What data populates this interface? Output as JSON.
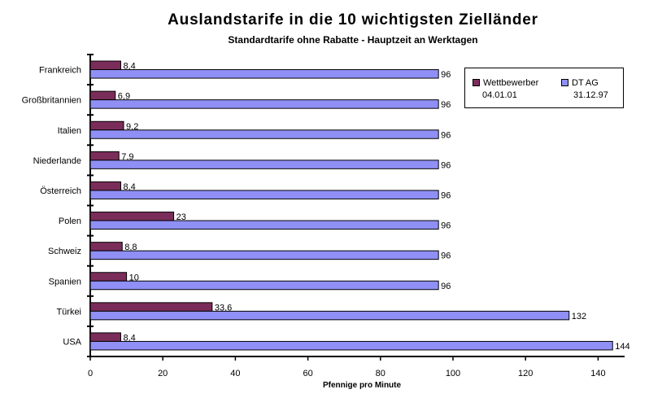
{
  "chart_data": {
    "type": "bar",
    "orientation": "horizontal",
    "title": "Auslandstarife in die 10 wichtigsten Zielländer",
    "subtitle": "Standardtarife ohne Rabatte - Hauptzeit an Werktagen",
    "xlabel": "Pfennige pro Minute",
    "ylabel": "",
    "xlim": [
      0,
      150
    ],
    "xticks": [
      0,
      20,
      40,
      60,
      80,
      100,
      120,
      140
    ],
    "categories": [
      "Frankreich",
      "Großbritannien",
      "Italien",
      "Niederlande",
      "Österreich",
      "Polen",
      "Schweiz",
      "Spanien",
      "Türkei",
      "USA"
    ],
    "series": [
      {
        "name": "Wettbewerber",
        "date": "04.01.01",
        "color": "#7b2d5a",
        "values": [
          8.4,
          6.9,
          9.2,
          7.9,
          8.4,
          23,
          8.8,
          10,
          33.6,
          8.4
        ],
        "labels": [
          "8,4",
          "6,9",
          "9,2",
          "7,9",
          "8,4",
          "23",
          "8,8",
          "10",
          "33,6",
          "8,4"
        ]
      },
      {
        "name": "DT AG",
        "date": "31.12.97",
        "color": "#8f8ff5",
        "values": [
          96,
          96,
          96,
          96,
          96,
          96,
          96,
          96,
          132,
          144
        ],
        "labels": [
          "96",
          "96",
          "96",
          "96",
          "96",
          "96",
          "96",
          "96",
          "132",
          "144"
        ]
      }
    ],
    "grid": false,
    "legend_position": "top-right"
  }
}
